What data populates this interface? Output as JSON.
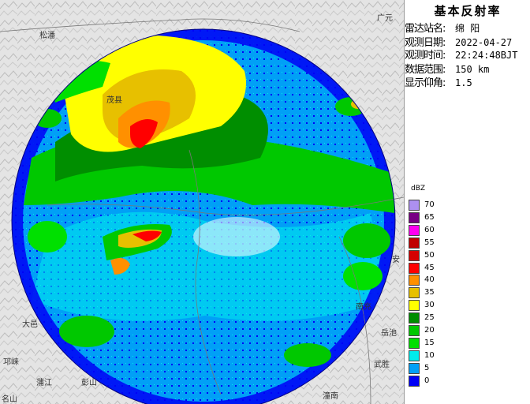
{
  "title": "基本反射率",
  "info": [
    {
      "label": "雷达站名:",
      "value": "绵 阳"
    },
    {
      "label": "观测日期:",
      "value": "2022-04-27"
    },
    {
      "label": "观测时间:",
      "value": "22:24:48BJT"
    },
    {
      "label": "数据范围:",
      "value": "150 km"
    },
    {
      "label": "显示仰角:",
      "value": "1.5"
    }
  ],
  "legend": {
    "unit": "dBZ",
    "items": [
      {
        "label": "70",
        "color": "#ad90f0"
      },
      {
        "label": "65",
        "color": "#780084"
      },
      {
        "label": "60",
        "color": "#ff00f0"
      },
      {
        "label": "55",
        "color": "#c00000"
      },
      {
        "label": "50",
        "color": "#d60000"
      },
      {
        "label": "45",
        "color": "#ff0000"
      },
      {
        "label": "40",
        "color": "#ff9000"
      },
      {
        "label": "35",
        "color": "#e7c000"
      },
      {
        "label": "30",
        "color": "#ffff00"
      },
      {
        "label": "25",
        "color": "#008e00"
      },
      {
        "label": "20",
        "color": "#00c800"
      },
      {
        "label": "15",
        "color": "#00e000"
      },
      {
        "label": "10",
        "color": "#00ecec"
      },
      {
        "label": "5",
        "color": "#01a0f6"
      },
      {
        "label": "0",
        "color": "#0000f6"
      }
    ]
  },
  "cities": [
    "松潘",
    "茂县",
    "大邑",
    "邛崃",
    "蒲江",
    "彭山",
    "岳池",
    "武胜",
    "潼南",
    "安",
    "南充",
    "广元",
    "名山"
  ]
}
